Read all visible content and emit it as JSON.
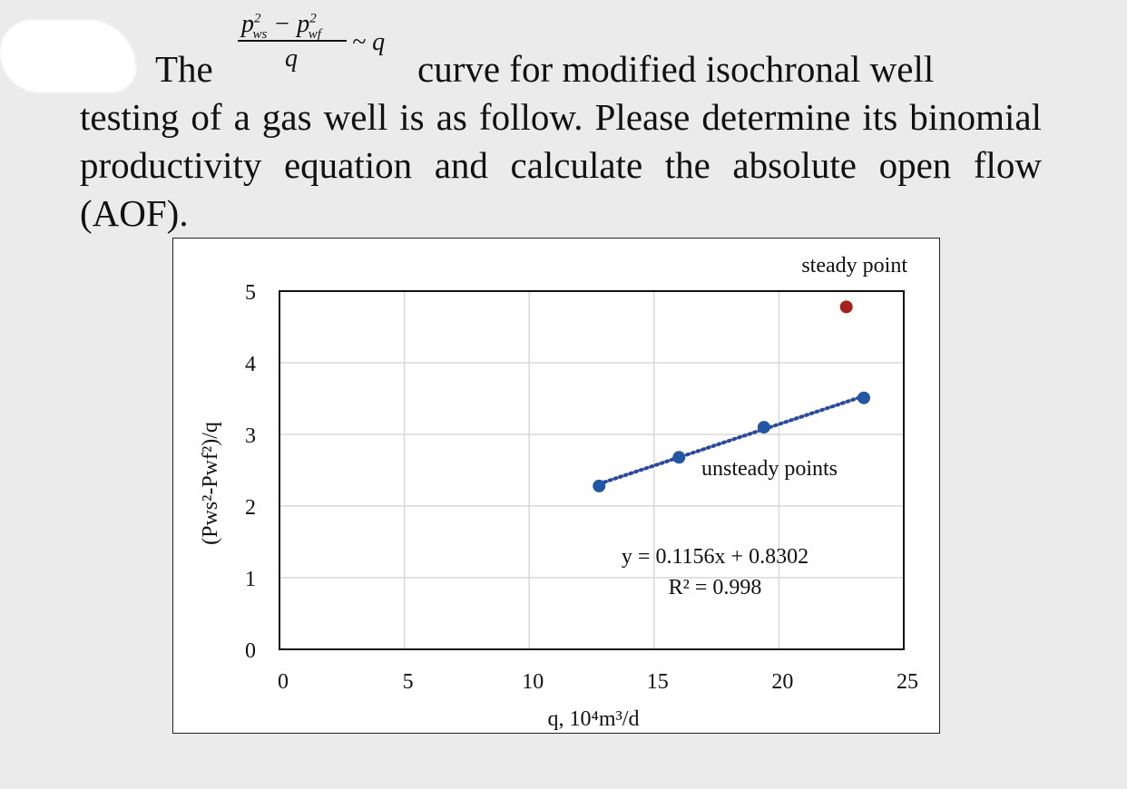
{
  "question": {
    "word_the": "The",
    "fraction_numerator": "p²ws − p²wf",
    "fraction_denominator": "q",
    "fraction_tilde": "~ q",
    "line1_rest": "curve for modified isochronal well",
    "body": "testing of a gas well is as follow. Please determine its binomial productivity equation and calculate the absolute open flow (AOF)."
  },
  "chart_data": {
    "type": "scatter",
    "xlabel": "q, 10⁴m³/d",
    "ylabel": "(Pws²-Pwf²)/q",
    "xlim": [
      0,
      25
    ],
    "ylim": [
      0,
      5
    ],
    "x_ticks": [
      "0",
      "5",
      "10",
      "15",
      "20",
      "25"
    ],
    "y_ticks": [
      "0",
      "1",
      "2",
      "3",
      "4",
      "5"
    ],
    "grid": true,
    "series": [
      {
        "name": "unsteady points",
        "color": "#2357a3",
        "x": [
          12.8,
          16.0,
          19.4,
          23.4
        ],
        "y": [
          2.28,
          2.68,
          3.1,
          3.51
        ]
      },
      {
        "name": "steady point",
        "color": "#a5201f",
        "x": [
          22.7
        ],
        "y": [
          4.78
        ]
      }
    ],
    "trendline": {
      "color": "#2a4a9a",
      "style": "dotted",
      "slope": 0.1156,
      "intercept": 0.8302,
      "x_range": [
        12.8,
        23.4
      ],
      "equation": "y = 0.1156x + 0.8302",
      "r_squared": "R² = 0.998"
    }
  }
}
